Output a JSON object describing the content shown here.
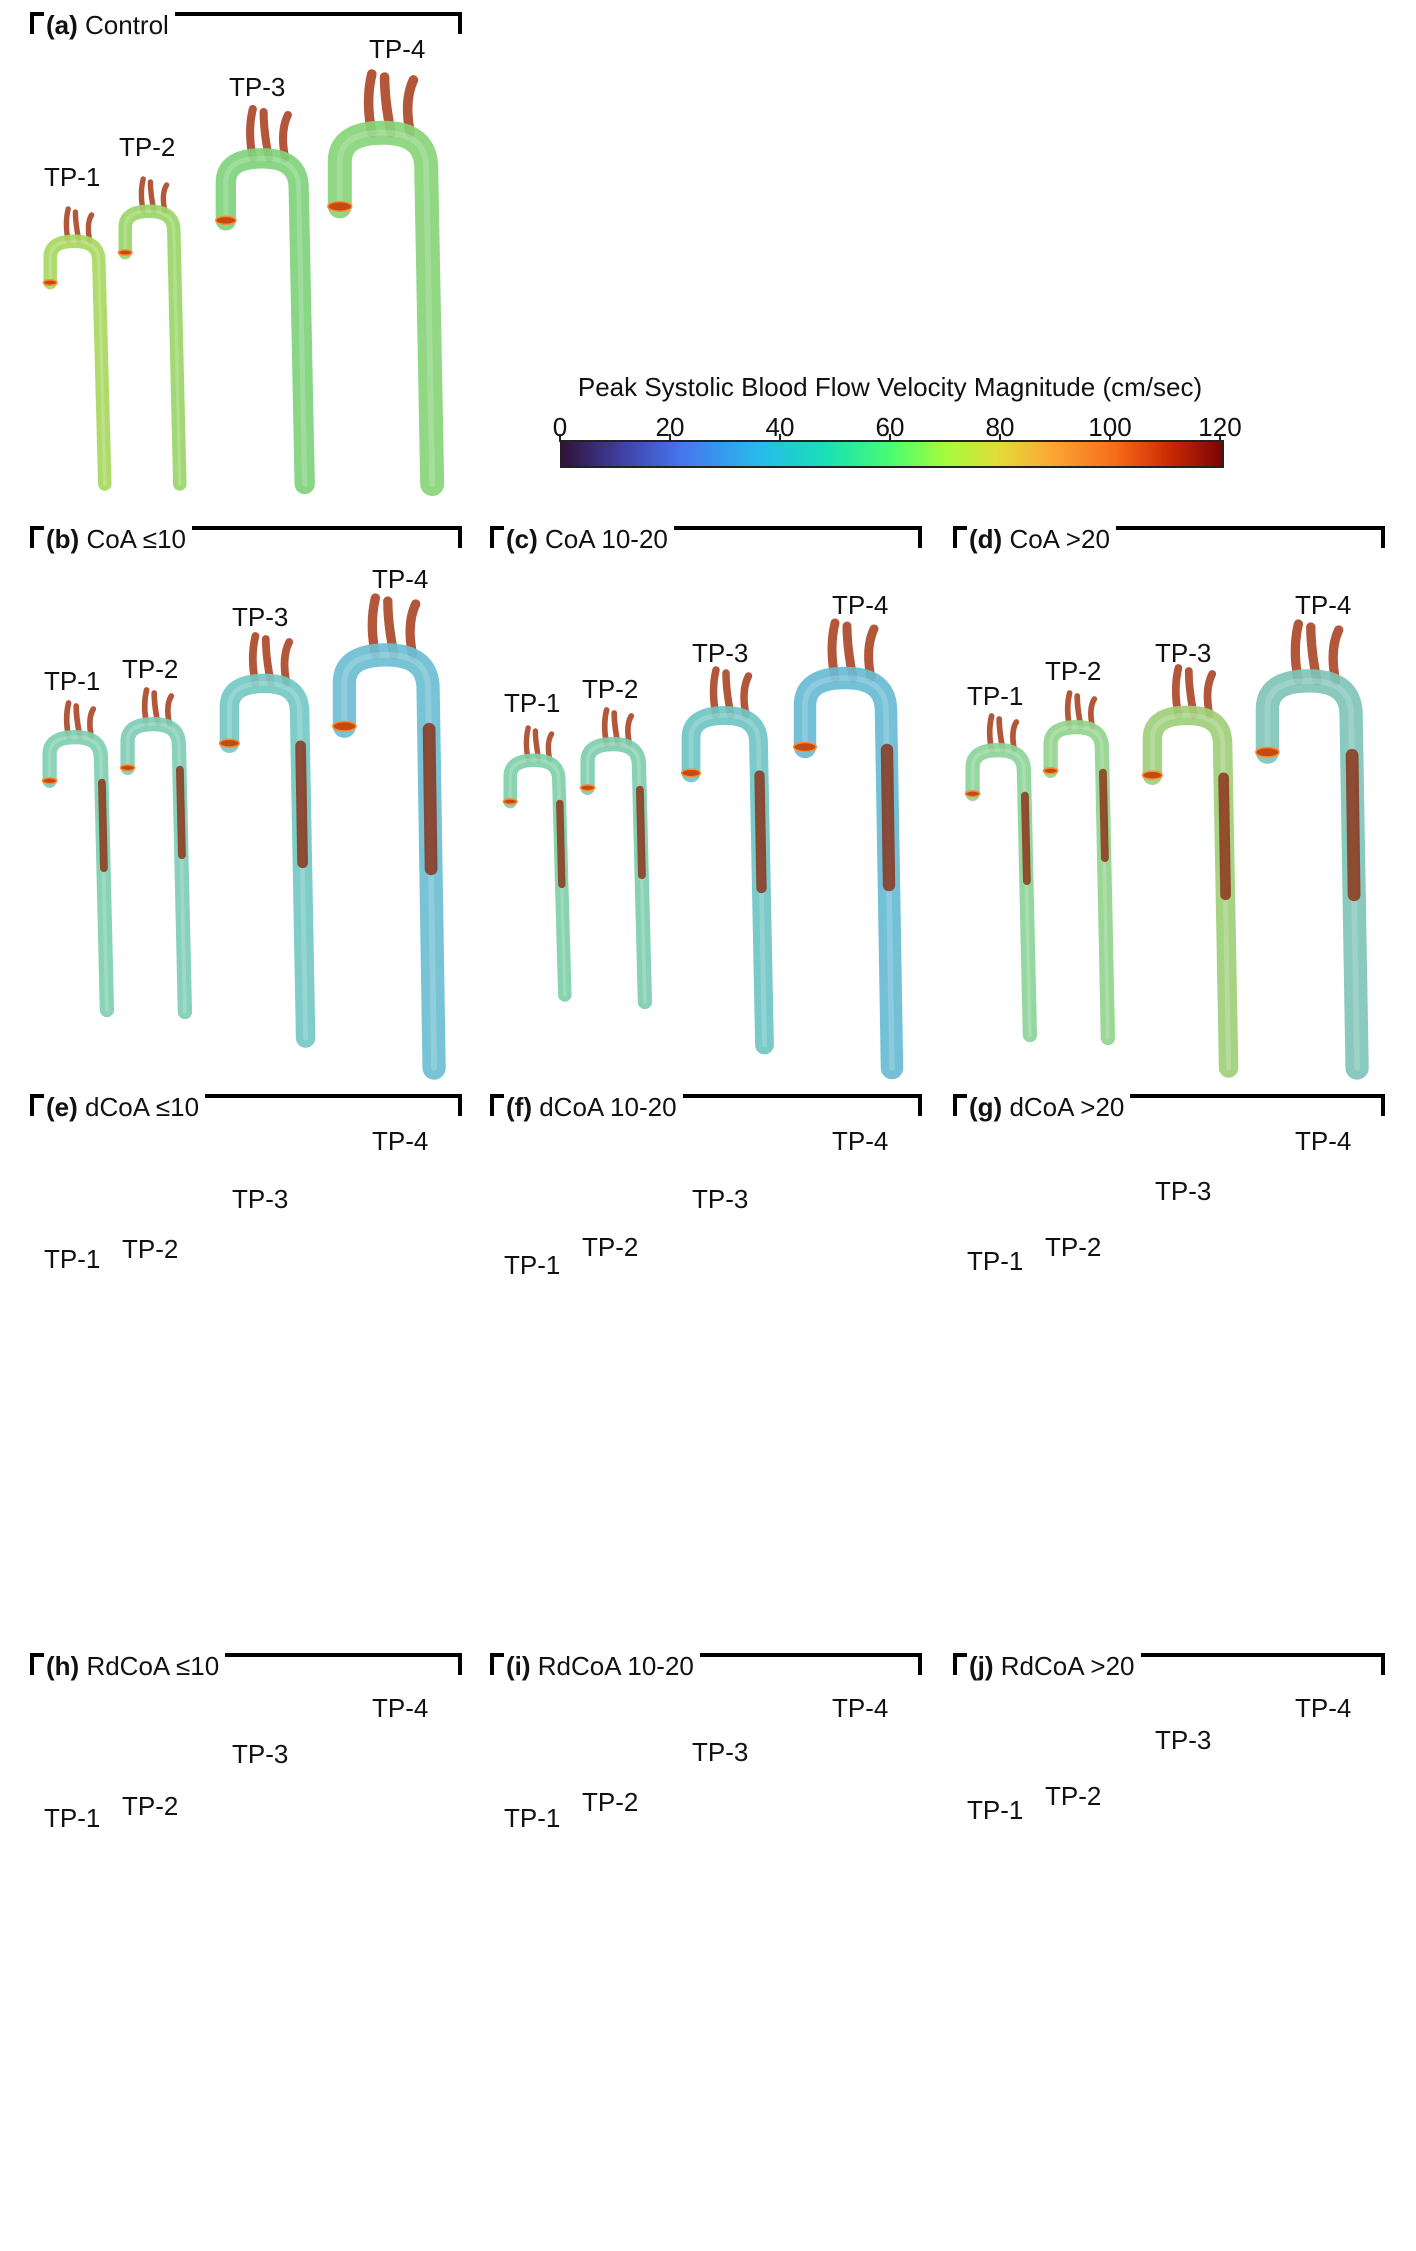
{
  "legend": {
    "title": "Peak Systolic Blood Flow Velocity Magnitude (cm/sec)",
    "ticks": [
      "0",
      "20",
      "40",
      "60",
      "80",
      "100",
      "120"
    ],
    "colormap": [
      "#30123b",
      "#4145ab",
      "#4675ed",
      "#28bbec",
      "#18e0b5",
      "#4bfc70",
      "#a4fc3c",
      "#e1dd37",
      "#fca835",
      "#f66b19",
      "#cb2a04",
      "#7a0403"
    ]
  },
  "tp_labels": [
    "TP-1",
    "TP-2",
    "TP-3",
    "TP-4"
  ],
  "panels": [
    {
      "letter": "(a)",
      "name": "Control",
      "tones": [
        "#a8d860",
        "#9ad668",
        "#7fd27c",
        "#88d47a"
      ],
      "stenosis": "none"
    },
    {
      "letter": "(b)",
      "name": "CoA ≤10",
      "tones": [
        "#7fd0b0",
        "#7fcdb5",
        "#74c8c4",
        "#6cbfd2"
      ],
      "stenosis": "coa"
    },
    {
      "letter": "(c)",
      "name": "CoA 10-20",
      "tones": [
        "#7fd0a8",
        "#7fcdaf",
        "#6fc6c4",
        "#68bcd4"
      ],
      "stenosis": "coa"
    },
    {
      "letter": "(d)",
      "name": "CoA >20",
      "tones": [
        "#8cd498",
        "#92d48e",
        "#a0d07a",
        "#7fc4b8"
      ],
      "stenosis": "coa"
    },
    {
      "letter": "(e)",
      "name": "dCoA ≤10",
      "tones": [
        "#c89040",
        "#c8a040",
        "#d4a034",
        "#d48a30"
      ],
      "stenosis": "dcoa"
    },
    {
      "letter": "(f)",
      "name": "dCoA 10-20",
      "tones": [
        "#5cb8d8",
        "#5ab8da",
        "#58c6c0",
        "#6ad09a"
      ],
      "stenosis": "dcoa"
    },
    {
      "letter": "(g)",
      "name": "dCoA >20",
      "tones": [
        "#70b8c8",
        "#70b4cc",
        "#6aa8d0",
        "#6c9ad4"
      ],
      "stenosis": "coa"
    },
    {
      "letter": "(h)",
      "name": "RdCoA ≤10",
      "tones": [
        "#78d078",
        "#7ad076",
        "#80d26e",
        "#86d468"
      ],
      "stenosis": "rdcoa"
    },
    {
      "letter": "(i)",
      "name": "RdCoA 10-20",
      "tones": [
        "#7ad0a0",
        "#86cc90",
        "#c8b048",
        "#d49838"
      ],
      "stenosis": "rdcoa"
    },
    {
      "letter": "(j)",
      "name": "RdCoA >20",
      "tones": [
        "#7aa0e4",
        "#7c9ee4",
        "#6c80d8",
        "#6e84da"
      ],
      "stenosis": "rdcoa"
    }
  ]
}
